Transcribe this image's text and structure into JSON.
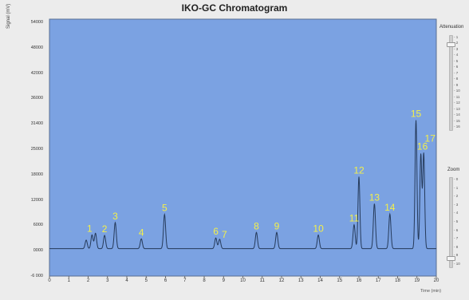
{
  "window": {
    "title": "IKO-GC Chromatogram"
  },
  "colors": {
    "plot_bg": "#7ba2e2",
    "trace": "#253a5a",
    "peak_label": "#f3ef4a",
    "window_bg": "#ececec"
  },
  "chart_data": {
    "type": "line",
    "title": "IKO-GC Chromatogram",
    "xlabel": "Time (min)",
    "ylabel": "Signal (mV)",
    "xlim": [
      0,
      20
    ],
    "ylim": [
      -6000,
      54000
    ],
    "x_ticks": [
      "0",
      "1",
      "2",
      "3",
      "4",
      "5",
      "6",
      "7",
      "8",
      "9",
      "10",
      "11",
      "12",
      "13",
      "14",
      "15",
      "16",
      "17",
      "18",
      "19",
      "20"
    ],
    "y_ticks": [
      "54000",
      "48000",
      "42000",
      "36000",
      "31400",
      "25000",
      "18000",
      "12000",
      "6000",
      "0000",
      "-6 000"
    ],
    "grid": false,
    "baseline": 400,
    "peaks": [
      {
        "label": "",
        "rt": 1.9,
        "height": 2000
      },
      {
        "label": "1",
        "rt": 2.2,
        "height": 3200
      },
      {
        "label": "",
        "rt": 2.38,
        "height": 3600
      },
      {
        "label": "2",
        "rt": 2.85,
        "height": 3100
      },
      {
        "label": "3",
        "rt": 3.4,
        "height": 6100
      },
      {
        "label": "4",
        "rt": 4.75,
        "height": 2300
      },
      {
        "label": "5",
        "rt": 5.95,
        "height": 8000
      },
      {
        "label": "6",
        "rt": 8.6,
        "height": 2500
      },
      {
        "label": "7",
        "rt": 8.8,
        "height": 2200
      },
      {
        "label": "8",
        "rt": 10.7,
        "height": 3800
      },
      {
        "label": "9",
        "rt": 11.75,
        "height": 3800
      },
      {
        "label": "10",
        "rt": 13.9,
        "height": 3200
      },
      {
        "label": "11",
        "rt": 15.75,
        "height": 5600
      },
      {
        "label": "12",
        "rt": 16.0,
        "height": 16800
      },
      {
        "label": "13",
        "rt": 16.8,
        "height": 10500
      },
      {
        "label": "14",
        "rt": 17.6,
        "height": 8100
      },
      {
        "label": "15",
        "rt": 18.95,
        "height": 30000
      },
      {
        "label": "16",
        "rt": 19.2,
        "height": 22000
      },
      {
        "label": "17",
        "rt": 19.35,
        "height": 22200
      }
    ]
  },
  "panels": {
    "attenuation": {
      "title": "Attenuation",
      "ticks": [
        "1",
        "2",
        "3",
        "4",
        "5",
        "6",
        "7",
        "8",
        "9",
        "10",
        "11",
        "12",
        "13",
        "14",
        "15",
        "16"
      ],
      "value_fraction": 0.08
    },
    "zoom": {
      "title": "Zoom",
      "ticks": [
        "0",
        "1",
        "2",
        "3",
        "4",
        "5",
        "6",
        "7",
        "8",
        "9",
        "10"
      ],
      "value_fraction": 0.88
    }
  }
}
